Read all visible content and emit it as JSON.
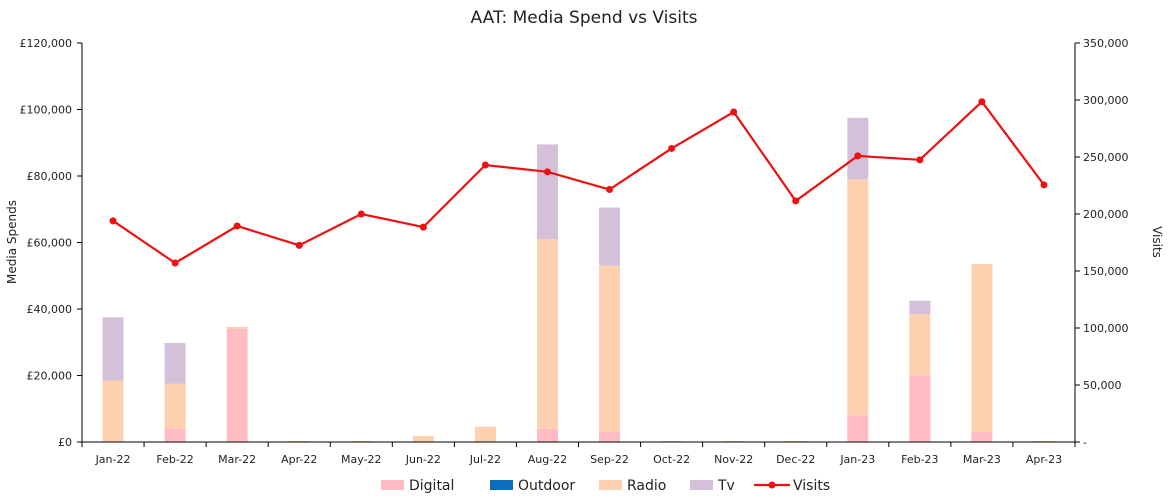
{
  "chart_data": {
    "type": "bar",
    "title": "AAT: Media Spend vs Visits",
    "xlabel": "",
    "ylabel": "Media Spends",
    "y2label": "Visits",
    "categories": [
      "Jan-22",
      "Feb-22",
      "Mar-22",
      "Apr-22",
      "May-22",
      "Jun-22",
      "Jul-22",
      "Aug-22",
      "Sep-22",
      "Oct-22",
      "Nov-22",
      "Dec-22",
      "Jan-23",
      "Feb-23",
      "Mar-23",
      "Apr-23"
    ],
    "ylim": [
      0,
      120000
    ],
    "y2lim": [
      0,
      350000
    ],
    "y_ticks": [
      "£0",
      "£20,000",
      "£40,000",
      "£60,000",
      "£80,000",
      "£100,000",
      "£120,000"
    ],
    "y_tick_values": [
      0,
      20000,
      40000,
      60000,
      80000,
      100000,
      120000
    ],
    "y2_ticks": [
      "-",
      "50,000",
      "100,000",
      "150,000",
      "200,000",
      "250,000",
      "300,000",
      "350,000"
    ],
    "y2_tick_values": [
      0,
      50000,
      100000,
      150000,
      200000,
      250000,
      300000,
      350000
    ],
    "grid": false,
    "legend_position": "bottom",
    "series": [
      {
        "name": "Digital",
        "kind": "stacked-bar",
        "color": "#ffbcc3",
        "values": [
          0,
          4000,
          34000,
          0,
          0,
          0,
          0,
          4000,
          3000,
          0,
          0,
          0,
          8000,
          20000,
          3000,
          0
        ]
      },
      {
        "name": "Outdoor",
        "kind": "stacked-bar",
        "color": "#0a6ebd",
        "values": [
          0,
          0,
          0,
          0,
          0,
          0,
          0,
          0,
          0,
          0,
          0,
          0,
          0,
          0,
          0,
          0
        ]
      },
      {
        "name": "Radio",
        "kind": "stacked-bar",
        "color": "#fdd1b0",
        "values": [
          18500,
          13500,
          600,
          300,
          300,
          1800,
          4600,
          57000,
          50000,
          300,
          300,
          300,
          71000,
          18500,
          50500,
          300
        ]
      },
      {
        "name": "Tv",
        "kind": "stacked-bar",
        "color": "#d5c0d9",
        "values": [
          19000,
          12300,
          0,
          0,
          0,
          0,
          0,
          28500,
          17500,
          0,
          0,
          0,
          18500,
          4000,
          0,
          0
        ]
      },
      {
        "name": "Visits",
        "kind": "line",
        "axis": "right",
        "color": "#ee1111",
        "values": [
          194000,
          157000,
          189500,
          172500,
          200000,
          188500,
          243000,
          237000,
          221500,
          257500,
          289500,
          211500,
          251000,
          247500,
          298500,
          225500
        ]
      }
    ]
  }
}
